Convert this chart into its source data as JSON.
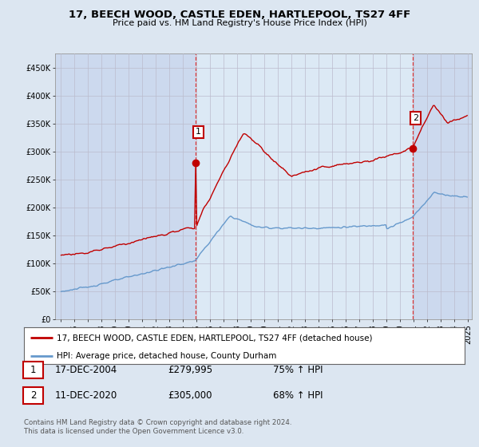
{
  "title": "17, BEECH WOOD, CASTLE EDEN, HARTLEPOOL, TS27 4FF",
  "subtitle": "Price paid vs. HM Land Registry's House Price Index (HPI)",
  "red_label": "17, BEECH WOOD, CASTLE EDEN, HARTLEPOOL, TS27 4FF (detached house)",
  "blue_label": "HPI: Average price, detached house, County Durham",
  "point1_label": "17-DEC-2004",
  "point1_price": "£279,995",
  "point1_hpi": "75% ↑ HPI",
  "point2_label": "11-DEC-2020",
  "point2_price": "£305,000",
  "point2_hpi": "68% ↑ HPI",
  "footnote": "Contains HM Land Registry data © Crown copyright and database right 2024.\nThis data is licensed under the Open Government Licence v3.0.",
  "bg_color": "#dce6f1",
  "plot_bg": "#ccd9ee",
  "shaded_bg": "#dce9f5",
  "red_color": "#c00000",
  "blue_color": "#6699cc",
  "vline_color": "#dd3333",
  "ylim": [
    0,
    475000
  ],
  "yticks": [
    0,
    50000,
    100000,
    150000,
    200000,
    250000,
    300000,
    350000,
    400000,
    450000
  ],
  "p1_year": 2004.958,
  "p1_val": 279995,
  "p2_year": 2020.958,
  "p2_val": 305000
}
